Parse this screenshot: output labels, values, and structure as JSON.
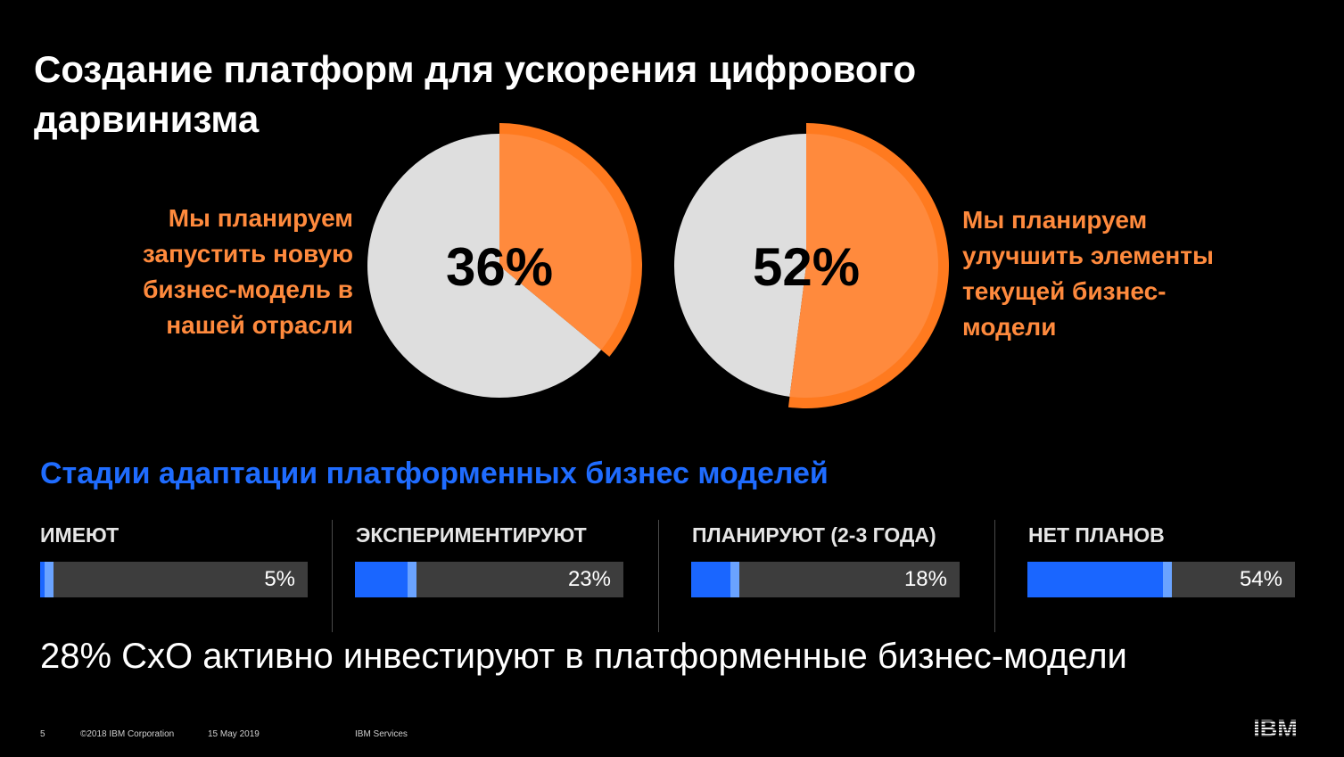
{
  "title": "Создание платформ для ускорения цифрового дарвинизма",
  "pies": [
    {
      "label": "Мы планируем запустить новую бизнес-модель в нашей отрасли",
      "value_text": "36%"
    },
    {
      "label": "Мы планируем улучшить элементы текущей бизнес-модели",
      "value_text": "52%"
    }
  ],
  "stages": {
    "title": "Стадии адаптации платформенных бизнес моделей",
    "items": [
      {
        "label": "ИМЕЮТ",
        "value_text": "5%"
      },
      {
        "label": "ЭКСПЕРИМЕНТИРУЮТ",
        "value_text": "23%"
      },
      {
        "label": "ПЛАНИРУЮТ (2-3 ГОДА)",
        "value_text": "18%"
      },
      {
        "label": "НЕТ ПЛАНОВ",
        "value_text": "54%"
      }
    ]
  },
  "summary": "28% CxO активно инвестируют в платформенные бизнес-модели",
  "footer": {
    "page_number": "5",
    "copyright": "©2018 IBM Corporation",
    "date": "15 May 2019",
    "division": "IBM Services",
    "logo_text": "IBM"
  },
  "colors": {
    "accent_orange": "#ff8a3d",
    "orange_dark": "#ff7a1f",
    "pie_gray": "#dedede",
    "bar_blue": "#1a66ff",
    "bar_cap": "#6aa3ff",
    "bar_track": "#3d3d3d"
  },
  "chart_data": [
    {
      "type": "pie",
      "title": "",
      "slices": [
        {
          "label": "Мы планируем запустить новую бизнес-модель в нашей отрасли",
          "value": 36
        },
        {
          "label": "",
          "value": 64
        }
      ]
    },
    {
      "type": "pie",
      "title": "",
      "slices": [
        {
          "label": "Мы планируем улучшить элементы текущей бизнес-модели",
          "value": 52
        },
        {
          "label": "",
          "value": 48
        }
      ]
    },
    {
      "type": "bar",
      "title": "Стадии адаптации платформенных бизнес моделей",
      "categories": [
        "ИМЕЮТ",
        "ЭКСПЕРИМЕНТИРУЮТ",
        "ПЛАНИРУЮТ (2-3 ГОДА)",
        "НЕТ ПЛАНОВ"
      ],
      "values": [
        5,
        23,
        18,
        54
      ],
      "ylim": [
        0,
        100
      ]
    }
  ]
}
